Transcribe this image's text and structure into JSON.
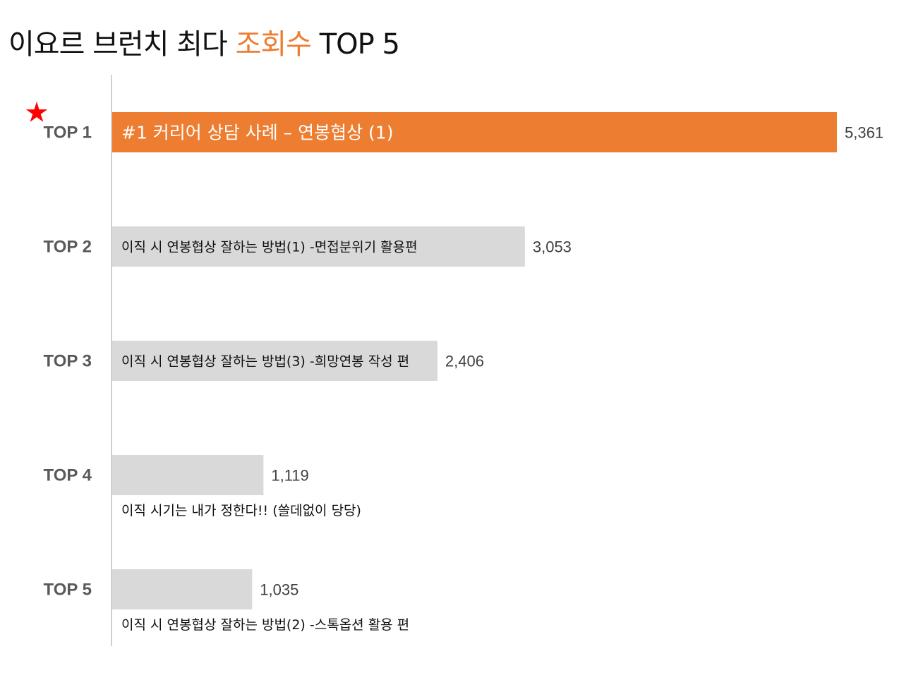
{
  "title": {
    "prefix": "이요르 브런치 최다",
    "accent": "조회수",
    "suffix": "TOP 5",
    "accent_color": "#ED7D31"
  },
  "chart_data": {
    "type": "bar",
    "orientation": "horizontal",
    "categories": [
      "TOP 1",
      "TOP 2",
      "TOP 3",
      "TOP 4",
      "TOP 5"
    ],
    "labels": [
      "#1 커리어 상담 사례 – 연봉협상 (1)",
      "이직 시 연봉협상 잘하는 방법(1) -면접분위기 활용편",
      "이직 시 연봉협상 잘하는 방법(3) -희망연봉 작성 편",
      "이직 시기는 내가 정한다!! (쓸데없이 당당)",
      "이직 시 연봉협상 잘하는 방법(2) -스톡옵션 활용 편"
    ],
    "values": [
      5361,
      3053,
      2406,
      1119,
      1035
    ],
    "value_labels": [
      "5,361",
      "3,053",
      "2,406",
      "1,119",
      "1,035"
    ],
    "xlim": [
      0,
      5361
    ],
    "highlight_index": 0,
    "colors": {
      "highlight": "#ED7D31",
      "default": "#D9D9D9",
      "marker": "#FF0000",
      "axis": "#D0D0D0"
    },
    "marker_icon": "star-icon",
    "grid": false
  }
}
